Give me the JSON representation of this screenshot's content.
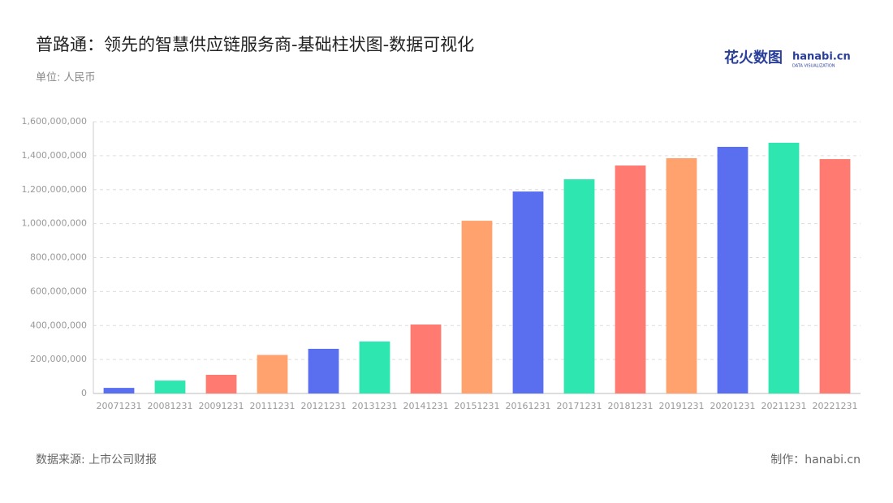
{
  "chart_data": {
    "type": "bar",
    "title": "普路通：领先的智慧供应链服务商-基础柱状图-数据可视化",
    "subtitle": "单位: 人民币",
    "source": "数据来源: 上市公司财报",
    "credit": "制作：hanabi.cn",
    "logo": {
      "name": "花火数图",
      "site": "hanabi.cn",
      "tagline": "DATA VISUALIZATION"
    },
    "categories": [
      "20071231",
      "20081231",
      "20091231",
      "20111231",
      "20121231",
      "20131231",
      "20141231",
      "20151231",
      "20161231",
      "20171231",
      "20181231",
      "20191231",
      "20201231",
      "20211231",
      "20221231"
    ],
    "values": [
      33000000,
      76000000,
      110000000,
      227000000,
      263000000,
      306000000,
      406000000,
      1017000000,
      1189000000,
      1261000000,
      1342000000,
      1385000000,
      1452000000,
      1476000000,
      1380000000
    ],
    "colors": [
      "#5a6ff0",
      "#2ee6b0",
      "#ff7a70",
      "#ffa26e",
      "#5a6ff0",
      "#2ee6b0",
      "#ff7a70",
      "#ffa26e",
      "#5a6ff0",
      "#2ee6b0",
      "#ff7a70",
      "#ffa26e",
      "#5a6ff0",
      "#2ee6b0",
      "#ff7a70"
    ],
    "ylim": [
      0,
      1600000000
    ],
    "yticks": [
      0,
      {
        "value": 200000000,
        "label": "200,000,000"
      },
      {
        "value": 400000000,
        "label": "400,000,000"
      },
      {
        "value": 600000000,
        "label": "600,000,000"
      },
      {
        "value": 800000000,
        "label": "800,000,000"
      },
      {
        "value": 1000000000,
        "label": "1,000,000,000"
      },
      {
        "value": 1200000000,
        "label": "1,200,000,000"
      },
      {
        "value": 1400000000,
        "label": "1,400,000,000"
      },
      {
        "value": 1600000000,
        "label": "1,600,000,000"
      }
    ],
    "grid": true
  }
}
